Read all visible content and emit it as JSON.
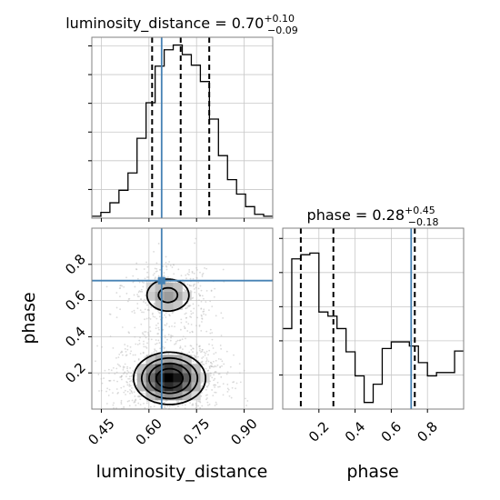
{
  "chart_data": [
    {
      "panel": "luminosity_distance-marginal",
      "type": "histogram",
      "title": {
        "name": "luminosity_distance",
        "median": "0.70",
        "plus": "+0.10",
        "minus": "−0.09"
      },
      "xlim": [
        0.42,
        0.99
      ],
      "bin_edges": [
        0.42,
        0.4485,
        0.477,
        0.5055,
        0.534,
        0.5625,
        0.591,
        0.6195,
        0.648,
        0.6765,
        0.705,
        0.7335,
        0.762,
        0.7905,
        0.819,
        0.8475,
        0.876,
        0.9045,
        0.933,
        0.9615,
        0.99
      ],
      "counts": [
        2,
        6,
        16,
        29,
        47,
        83,
        120,
        158,
        175,
        180,
        170,
        159,
        142,
        103,
        65,
        40,
        25,
        12,
        4,
        2
      ],
      "ylim": [
        0,
        188
      ],
      "quantile_lines": [
        0.61,
        0.7,
        0.79
      ],
      "truth": 0.64,
      "y_tick_count": 6
    },
    {
      "panel": "phase-vs-luminosity_distance",
      "type": "heatmap",
      "xlim": [
        0.42,
        0.99
      ],
      "ylim": [
        0.0,
        1.0
      ],
      "xlabel": "luminosity_distance",
      "ylabel": "phase",
      "xticks": [
        "0.45",
        "0.60",
        "0.75",
        "0.90"
      ],
      "yticks": [
        "0.2",
        "0.4",
        "0.6",
        "0.8"
      ],
      "truth": {
        "x": 0.64,
        "y": 0.71
      },
      "density_peaks": [
        {
          "x": 0.665,
          "y": 0.17,
          "sx": 0.055,
          "sy": 0.07,
          "weight": 1.0
        },
        {
          "x": 0.66,
          "y": 0.63,
          "sx": 0.045,
          "sy": 0.06,
          "weight": 0.35
        }
      ],
      "contour_levels": 4
    },
    {
      "panel": "phase-marginal",
      "type": "histogram",
      "title": {
        "name": "phase",
        "median": "0.28",
        "plus": "+0.45",
        "minus": "−0.18"
      },
      "xlim": [
        0.0,
        1.0
      ],
      "bin_edges": [
        0.0,
        0.05,
        0.1,
        0.15,
        0.2,
        0.25,
        0.3,
        0.35,
        0.4,
        0.45,
        0.5,
        0.55,
        0.6,
        0.65,
        0.7,
        0.75,
        0.8,
        0.85,
        0.9,
        0.95,
        1.0
      ],
      "counts": [
        97,
        181,
        186,
        188,
        117,
        112,
        97,
        69,
        40,
        8,
        30,
        73,
        81,
        81,
        76,
        56,
        40,
        44,
        44,
        70
      ],
      "ylim": [
        0,
        218
      ],
      "xticks": [
        "0.2",
        "0.4",
        "0.6",
        "0.8"
      ],
      "xlabel": "phase",
      "quantile_lines": [
        0.1,
        0.28,
        0.73
      ],
      "truth": 0.71,
      "y_tick_count": 5
    }
  ],
  "colors": {
    "truth": "#4682b4",
    "hist": "#000000",
    "frame": "#808080",
    "grid": "#c8c8c8"
  }
}
